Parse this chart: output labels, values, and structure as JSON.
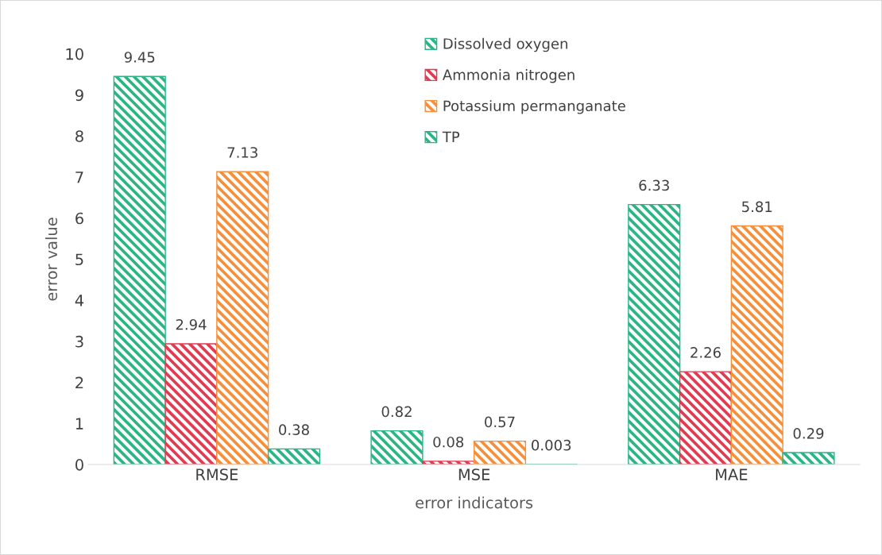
{
  "chart_data": {
    "type": "bar",
    "xlabel": "error indicators",
    "ylabel": "error value",
    "categories": [
      "RMSE",
      "MSE",
      "MAE"
    ],
    "series": [
      {
        "name": "Dissolved oxygen",
        "color": "#2bb585",
        "values": [
          9.45,
          0.82,
          6.33
        ]
      },
      {
        "name": "Ammonia nitrogen",
        "color": "#e23a50",
        "values": [
          2.94,
          0.08,
          2.26
        ]
      },
      {
        "name": "Potassium permanganate",
        "color": "#f78f3a",
        "values": [
          7.13,
          0.57,
          5.81
        ]
      },
      {
        "name": "TP",
        "color": "#2bb585",
        "values": [
          0.38,
          0.003,
          0.29
        ]
      }
    ],
    "ylim": [
      0,
      10
    ],
    "yticks": [
      0,
      1,
      2,
      3,
      4,
      5,
      6,
      7,
      8,
      9,
      10
    ],
    "data_labels": true,
    "grid": false,
    "legend": "top"
  }
}
